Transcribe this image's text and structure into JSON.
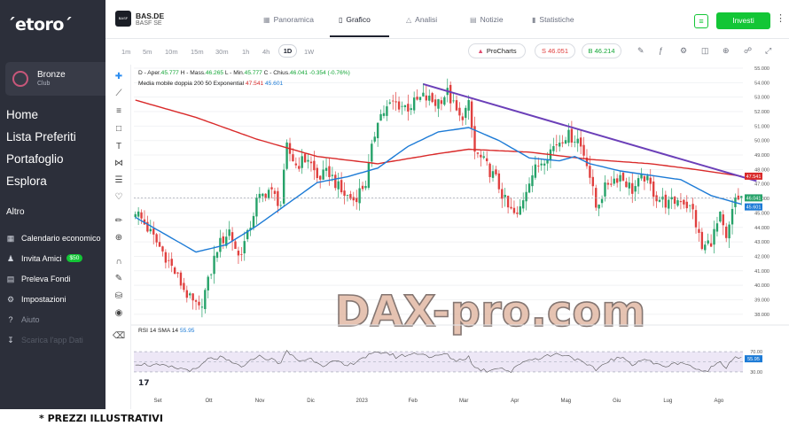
{
  "sidebar": {
    "logo": "´etoro´",
    "profile": {
      "name": "Bronze",
      "sub": "Club"
    },
    "main_nav": [
      "Home",
      "Lista Preferiti",
      "Portafoglio",
      "Esplora"
    ],
    "section_title": "Altro",
    "secondary_nav": [
      {
        "label": "Calendario economico",
        "icon": "calendar-icon"
      },
      {
        "label": "Invita Amici",
        "icon": "users-icon",
        "badge": "$50"
      },
      {
        "label": "Preleva Fondi",
        "icon": "wallet-icon"
      },
      {
        "label": "Impostazioni",
        "icon": "gear-icon"
      },
      {
        "label": "Aiuto",
        "icon": "help-icon"
      },
      {
        "label": "Scarica l'app Dati",
        "icon": "download-icon"
      }
    ]
  },
  "header": {
    "symbol": "BAS.DE",
    "symbol_name": "BASF SE",
    "symbol_logo_text": "BASF",
    "tabs": [
      {
        "label": "Panoramica",
        "icon": "grid-icon"
      },
      {
        "label": "Grafico",
        "icon": "chart-icon",
        "active": true
      },
      {
        "label": "Analisi",
        "icon": "flask-icon"
      },
      {
        "label": "Notizie",
        "icon": "news-icon"
      },
      {
        "label": "Statistiche",
        "icon": "stats-icon"
      }
    ],
    "invest_label": "Investi"
  },
  "toolbar": {
    "timeframes": [
      "1m",
      "5m",
      "10m",
      "15m",
      "30m",
      "1h",
      "4h",
      "1D",
      "1W"
    ],
    "active_timeframe": "1D",
    "procharts_label": "ProCharts",
    "sell_label": "S 46.051",
    "buy_label": "B 46.214"
  },
  "chart_legend": {
    "ohlc_prefix": "D - Aper.",
    "open": "45.777",
    "high_label": "H - Mass.",
    "high": "46.265",
    "low_label": "L - Min.",
    "low": "45.777",
    "close_label": "C - Chius.",
    "close": "46.041",
    "change": "-0.354 (-0.76%)",
    "ma_label": "Media mobile doppia 200 50 Exponential",
    "ma200": "47.541",
    "ma50": "45.601",
    "rsi_label": "RSI 14 SMA 14",
    "rsi_value": "55.95"
  },
  "watermark": "DAX-pro.com",
  "footer_note": "* PREZZI ILLUSTRATIVI",
  "colors": {
    "sidebar_bg": "#2c2f3a",
    "accent_green": "#13c636",
    "candle_up": "#26a269",
    "candle_down": "#e0403f",
    "ma200": "#d92a2a",
    "ma50": "#1d7bd6",
    "trendline": "#6b3fb8",
    "rsi_line": "#555555",
    "rsi_band": "#ede7f6"
  },
  "chart_data": {
    "type": "candlestick",
    "x_ticks": [
      "Set",
      "Ott",
      "Nov",
      "Dic",
      "2023",
      "Feb",
      "Mar",
      "Apr",
      "Mag",
      "Giu",
      "Lug",
      "Ago"
    ],
    "y_ticks": [
      38.0,
      39.0,
      40.0,
      41.0,
      42.0,
      43.0,
      44.0,
      45.0,
      46.0,
      47.0,
      48.0,
      49.0,
      50.0,
      51.0,
      52.0,
      53.0,
      54.0,
      55.0
    ],
    "ylim": [
      37.5,
      55.0
    ],
    "price_labels": [
      "47.541",
      "46.041",
      "45.601"
    ],
    "close_anchors": [
      [
        0,
        45.2
      ],
      [
        5,
        43.6
      ],
      [
        10,
        42.0
      ],
      [
        14,
        40.5
      ],
      [
        18,
        39.0
      ],
      [
        21,
        38.3
      ],
      [
        24,
        40.2
      ],
      [
        27,
        42.6
      ],
      [
        31,
        43.8
      ],
      [
        34,
        42.0
      ],
      [
        37,
        43.4
      ],
      [
        40,
        45.8
      ],
      [
        44,
        46.6
      ],
      [
        48,
        45.6
      ],
      [
        50,
        49.5
      ],
      [
        53,
        48.3
      ],
      [
        57,
        48.8
      ],
      [
        60,
        47.4
      ],
      [
        64,
        47.8
      ],
      [
        68,
        46.4
      ],
      [
        72,
        45.9
      ],
      [
        76,
        47.1
      ],
      [
        80,
        51.6
      ],
      [
        85,
        52.6
      ],
      [
        90,
        52.3
      ],
      [
        95,
        53.0
      ],
      [
        99,
        52.6
      ],
      [
        103,
        53.3
      ],
      [
        107,
        51.5
      ],
      [
        110,
        52.4
      ],
      [
        112,
        49.2
      ],
      [
        115,
        48.5
      ],
      [
        119,
        47.3
      ],
      [
        123,
        45.3
      ],
      [
        126,
        44.7
      ],
      [
        130,
        47.4
      ],
      [
        134,
        48.6
      ],
      [
        138,
        49.6
      ],
      [
        142,
        50.4
      ],
      [
        146,
        50.1
      ],
      [
        149,
        48.6
      ],
      [
        152,
        45.4
      ],
      [
        156,
        47.1
      ],
      [
        160,
        47.6
      ],
      [
        164,
        46.6
      ],
      [
        168,
        47.5
      ],
      [
        172,
        46.1
      ],
      [
        176,
        45.6
      ],
      [
        180,
        46.0
      ],
      [
        184,
        45.1
      ],
      [
        187,
        42.5
      ],
      [
        190,
        43.1
      ],
      [
        193,
        44.7
      ],
      [
        195,
        43.0
      ],
      [
        198,
        46.0
      ],
      [
        200,
        46.05
      ]
    ],
    "ma200_anchors": [
      [
        0,
        52.8
      ],
      [
        20,
        51.6
      ],
      [
        40,
        50.1
      ],
      [
        60,
        48.9
      ],
      [
        80,
        48.4
      ],
      [
        100,
        49.1
      ],
      [
        110,
        49.4
      ],
      [
        130,
        49.2
      ],
      [
        150,
        48.7
      ],
      [
        170,
        48.4
      ],
      [
        185,
        48.0
      ],
      [
        200,
        47.54
      ]
    ],
    "ma50_anchors": [
      [
        0,
        44.7
      ],
      [
        10,
        43.5
      ],
      [
        20,
        42.3
      ],
      [
        30,
        42.8
      ],
      [
        40,
        44.1
      ],
      [
        50,
        45.6
      ],
      [
        60,
        47.1
      ],
      [
        70,
        47.5
      ],
      [
        80,
        48.1
      ],
      [
        90,
        49.6
      ],
      [
        100,
        50.6
      ],
      [
        110,
        50.9
      ],
      [
        120,
        50.0
      ],
      [
        130,
        48.8
      ],
      [
        140,
        48.6
      ],
      [
        145,
        48.9
      ],
      [
        150,
        48.4
      ],
      [
        160,
        47.9
      ],
      [
        170,
        47.6
      ],
      [
        180,
        47.3
      ],
      [
        190,
        46.2
      ],
      [
        200,
        45.6
      ]
    ],
    "trendline": {
      "from": [
        95,
        53.9
      ],
      "to": [
        205,
        47.2
      ]
    },
    "rsi": {
      "ylim": [
        0,
        100
      ],
      "levels": [
        70,
        50,
        30
      ],
      "band": [
        30,
        70
      ],
      "value": 55.95,
      "anchors": [
        [
          0,
          47
        ],
        [
          8,
          42
        ],
        [
          14,
          37
        ],
        [
          20,
          33
        ],
        [
          24,
          55
        ],
        [
          28,
          58
        ],
        [
          32,
          47
        ],
        [
          36,
          40
        ],
        [
          40,
          62
        ],
        [
          44,
          56
        ],
        [
          48,
          48
        ],
        [
          50,
          70
        ],
        [
          54,
          52
        ],
        [
          58,
          56
        ],
        [
          62,
          44
        ],
        [
          66,
          50
        ],
        [
          70,
          41
        ],
        [
          74,
          56
        ],
        [
          78,
          64
        ],
        [
          82,
          70
        ],
        [
          86,
          60
        ],
        [
          90,
          64
        ],
        [
          94,
          68
        ],
        [
          98,
          58
        ],
        [
          102,
          66
        ],
        [
          106,
          52
        ],
        [
          110,
          60
        ],
        [
          112,
          38
        ],
        [
          116,
          32
        ],
        [
          120,
          40
        ],
        [
          124,
          30
        ],
        [
          128,
          52
        ],
        [
          132,
          56
        ],
        [
          136,
          62
        ],
        [
          140,
          66
        ],
        [
          144,
          60
        ],
        [
          148,
          46
        ],
        [
          152,
          34
        ],
        [
          156,
          52
        ],
        [
          160,
          58
        ],
        [
          164,
          46
        ],
        [
          168,
          56
        ],
        [
          172,
          44
        ],
        [
          176,
          42
        ],
        [
          180,
          50
        ],
        [
          184,
          40
        ],
        [
          187,
          28
        ],
        [
          190,
          38
        ],
        [
          193,
          52
        ],
        [
          195,
          40
        ],
        [
          198,
          62
        ],
        [
          200,
          55.95
        ]
      ]
    },
    "n_bars": 201
  }
}
